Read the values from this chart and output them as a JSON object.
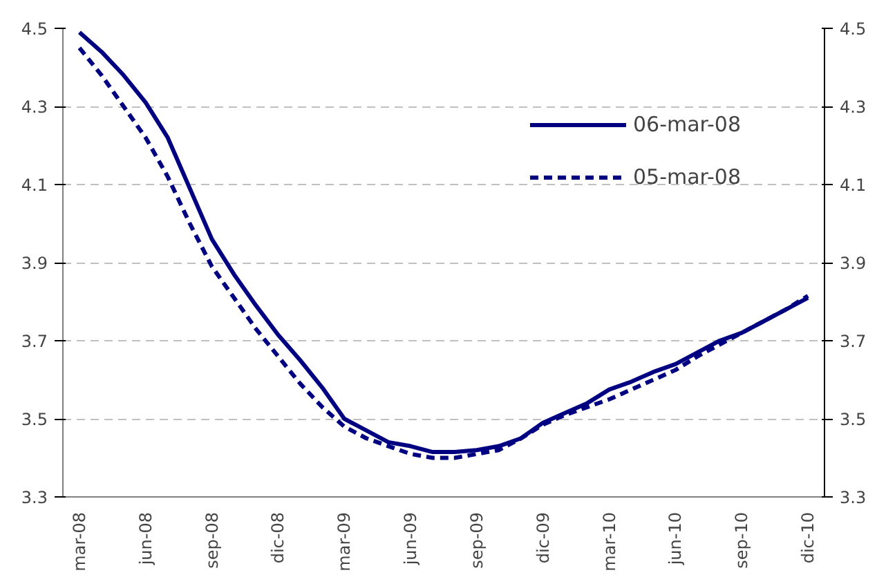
{
  "chart_data": {
    "type": "line",
    "categories": [
      "mar-08",
      null,
      null,
      "jun-08",
      null,
      null,
      "sep-08",
      null,
      null,
      "dic-08",
      null,
      null,
      "mar-09",
      null,
      null,
      "jun-09",
      null,
      null,
      "sep-09",
      null,
      null,
      "dic-09",
      null,
      null,
      "mar-10",
      null,
      null,
      "jun-10",
      null,
      null,
      "sep-10",
      null,
      null,
      "dic-10"
    ],
    "series": [
      {
        "name": "06-mar-08",
        "color": "#000080",
        "line_style": "solid",
        "values": [
          4.49,
          4.44,
          4.38,
          4.31,
          4.22,
          4.09,
          3.96,
          3.87,
          3.79,
          3.715,
          3.65,
          3.58,
          3.5,
          3.47,
          3.44,
          3.43,
          3.415,
          3.415,
          3.42,
          3.43,
          3.45,
          3.49,
          3.515,
          3.54,
          3.575,
          3.595,
          3.62,
          3.64,
          3.67,
          3.7,
          3.72,
          3.75,
          3.78,
          3.81
        ]
      },
      {
        "name": "05-mar-08",
        "color": "#000080",
        "line_style": "dashed",
        "values": [
          4.45,
          4.38,
          4.3,
          4.22,
          4.12,
          4.0,
          3.89,
          3.81,
          3.73,
          3.66,
          3.59,
          3.53,
          3.48,
          3.45,
          3.43,
          3.41,
          3.4,
          3.4,
          3.41,
          3.42,
          3.45,
          3.485,
          3.51,
          3.53,
          3.55,
          3.575,
          3.6,
          3.625,
          3.66,
          3.69,
          3.72,
          3.75,
          3.78,
          3.815
        ]
      }
    ],
    "ylim": [
      3.3,
      4.5
    ],
    "yticks": [
      3.3,
      3.5,
      3.7,
      3.9,
      4.1,
      4.3,
      4.5
    ],
    "y2lim": [
      3.3,
      4.5
    ],
    "y2ticks": [
      3.3,
      3.5,
      3.7,
      3.9,
      4.1,
      4.3,
      4.5
    ],
    "grid": "y",
    "legend": "top right"
  }
}
